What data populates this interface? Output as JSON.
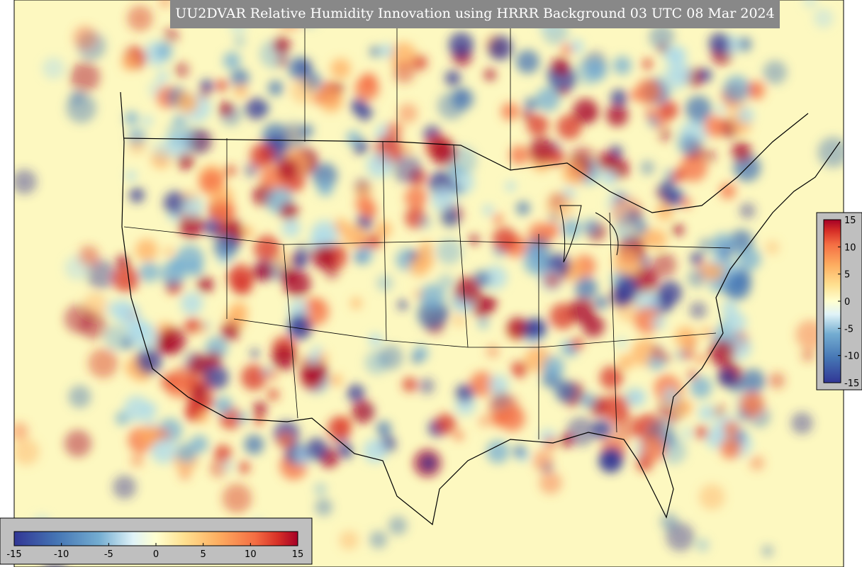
{
  "title": "UU2DVAR Relative Humidity Innovation using HRRR Background 03 UTC 08 Mar 2024",
  "colorbars": [
    {
      "orientation": "horizontal",
      "lim": [
        -15,
        15
      ],
      "ticks": [
        -15,
        -10,
        -5,
        0,
        5,
        10,
        15
      ]
    },
    {
      "orientation": "vertical",
      "lim": [
        -15,
        15
      ],
      "ticks": [
        15,
        10,
        5,
        0,
        -5,
        -10,
        -15
      ]
    }
  ]
}
